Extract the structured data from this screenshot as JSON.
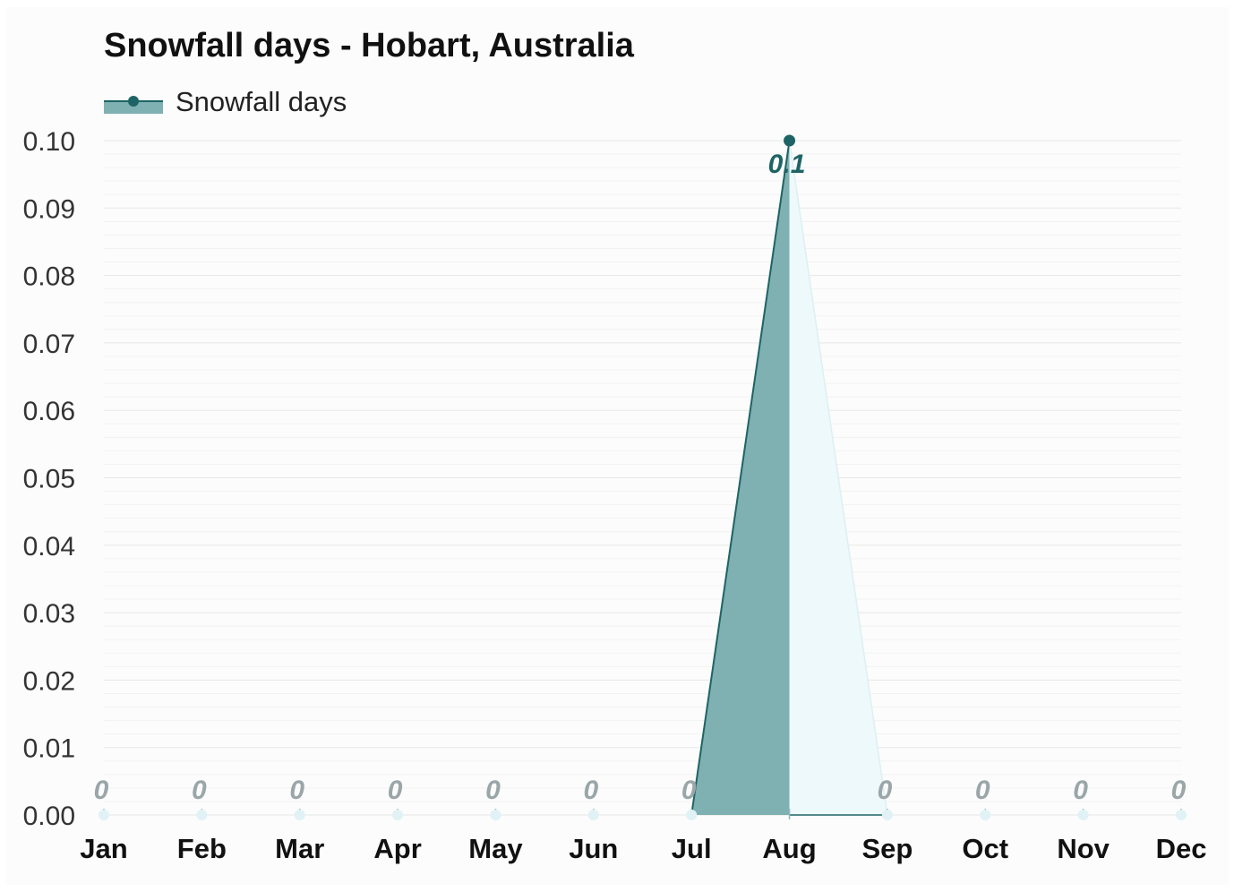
{
  "title": "Snowfall days - Hobart, Australia",
  "legend": {
    "label": "Snowfall days"
  },
  "colors": {
    "line": "#1e6466",
    "fill_active": "#7fb0b2",
    "fill_light": "#eef9fb",
    "grid_major": "#e6e9e6",
    "grid_minor": "#f1f3f1",
    "zero_marker": "#e0f2f6",
    "zero_label": "#9aa6a8",
    "value_label": "#1e6466"
  },
  "chart_data": {
    "type": "area",
    "title": "Snowfall days - Hobart, Australia",
    "categories": [
      "Jan",
      "Feb",
      "Mar",
      "Apr",
      "May",
      "Jun",
      "Jul",
      "Aug",
      "Sep",
      "Oct",
      "Nov",
      "Dec"
    ],
    "series": [
      {
        "name": "Snowfall days",
        "values": [
          0,
          0,
          0,
          0,
          0,
          0,
          0,
          0.1,
          0,
          0,
          0,
          0
        ]
      }
    ],
    "data_labels": [
      "0",
      "0",
      "0",
      "0",
      "0",
      "0",
      "0",
      "0.1",
      "0",
      "0",
      "0",
      "0"
    ],
    "ylim": [
      0,
      0.1
    ],
    "yticks": [
      "0.00",
      "0.01",
      "0.02",
      "0.03",
      "0.04",
      "0.05",
      "0.06",
      "0.07",
      "0.08",
      "0.09",
      "0.10"
    ],
    "xlabel": "",
    "ylabel": "",
    "grid": true,
    "legend_position": "top-left"
  }
}
